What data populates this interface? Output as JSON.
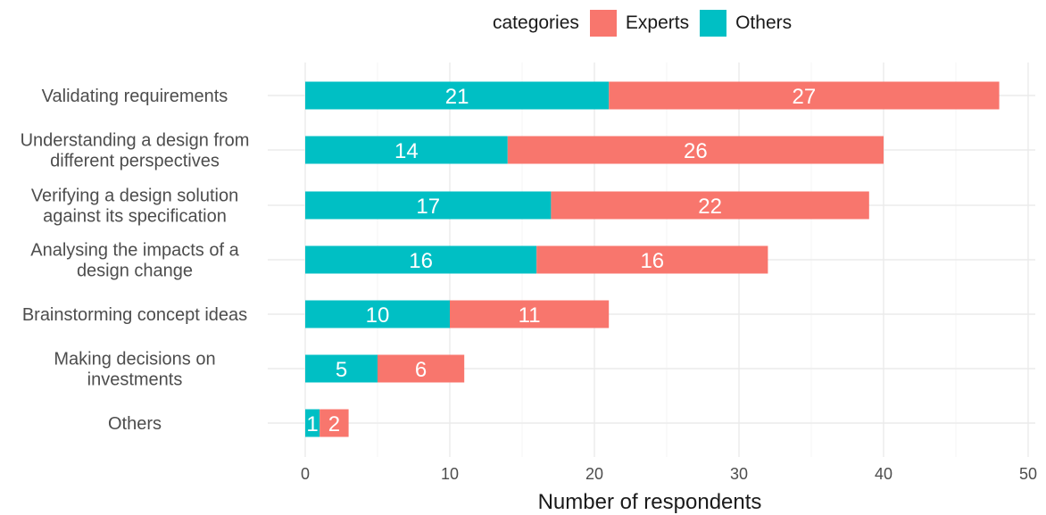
{
  "legend": {
    "title": "categories",
    "items": [
      {
        "label": "Experts",
        "color": "#F8766D"
      },
      {
        "label": "Others",
        "color": "#00BFC4"
      }
    ]
  },
  "chart_data": {
    "type": "bar",
    "orientation": "horizontal",
    "stacked": true,
    "title": "",
    "xlabel": "Number of respondents",
    "ylabel": "",
    "xlim": [
      0,
      50
    ],
    "xticks": [
      0,
      10,
      20,
      30,
      40,
      50
    ],
    "grid": true,
    "legend_position": "top",
    "categories": [
      [
        "Validating requirements"
      ],
      [
        "Understanding a design from",
        "different perspectives"
      ],
      [
        "Verifying a design solution",
        "against its specification"
      ],
      [
        "Analysing the impacts of a",
        "design change"
      ],
      [
        "Brainstorming concept ideas"
      ],
      [
        "Making decisions on",
        "investments"
      ],
      [
        "Others"
      ]
    ],
    "series": [
      {
        "name": "Others",
        "color": "#00BFC4",
        "values": [
          21,
          14,
          17,
          16,
          10,
          5,
          1
        ]
      },
      {
        "name": "Experts",
        "color": "#F8766D",
        "values": [
          27,
          26,
          22,
          16,
          11,
          6,
          2
        ]
      }
    ]
  }
}
